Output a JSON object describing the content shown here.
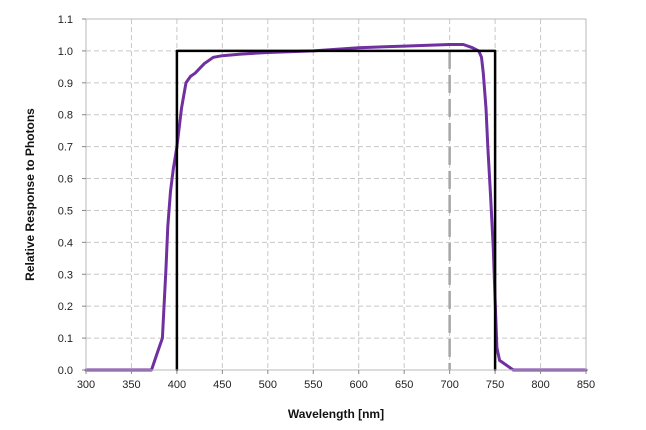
{
  "chart_data": {
    "type": "line",
    "title": "",
    "xlabel": "Wavelength [nm]",
    "ylabel": "Relative Response to Photons",
    "xlim": [
      300,
      850
    ],
    "ylim": [
      0,
      1.1
    ],
    "x_ticks": [
      300,
      350,
      400,
      450,
      500,
      550,
      600,
      650,
      700,
      750,
      800,
      850
    ],
    "y_ticks": [
      0.0,
      0.1,
      0.2,
      0.3,
      0.4,
      0.5,
      0.6,
      0.7,
      0.8,
      0.9,
      1.0,
      1.1
    ],
    "grid": true,
    "legend": "none",
    "series": [
      {
        "kind": "response-curve",
        "color": "#7030a0",
        "x": [
          300,
          372,
          378,
          384,
          388,
          390,
          393,
          396,
          400,
          405,
          410,
          415,
          420,
          430,
          440,
          450,
          470,
          500,
          550,
          600,
          650,
          700,
          715,
          725,
          732,
          735,
          737,
          740,
          742,
          745,
          748,
          750,
          752,
          755,
          760,
          770,
          850
        ],
        "y": [
          0.0,
          0.0,
          0.05,
          0.1,
          0.32,
          0.45,
          0.56,
          0.63,
          0.7,
          0.82,
          0.9,
          0.92,
          0.93,
          0.96,
          0.98,
          0.985,
          0.99,
          0.995,
          1.0,
          1.01,
          1.015,
          1.02,
          1.02,
          1.01,
          1.0,
          0.98,
          0.93,
          0.82,
          0.7,
          0.55,
          0.38,
          0.22,
          0.07,
          0.03,
          0.02,
          0.0,
          0.0
        ]
      },
      {
        "kind": "ideal-bandpass",
        "color": "#000000",
        "x": [
          400,
          400,
          750,
          750
        ],
        "y": [
          0.0,
          1.0,
          1.0,
          0.0
        ]
      }
    ],
    "reference_lines": [
      {
        "axis": "x",
        "value": 700,
        "color": "#a6a6a6",
        "style": "dashed"
      }
    ]
  }
}
